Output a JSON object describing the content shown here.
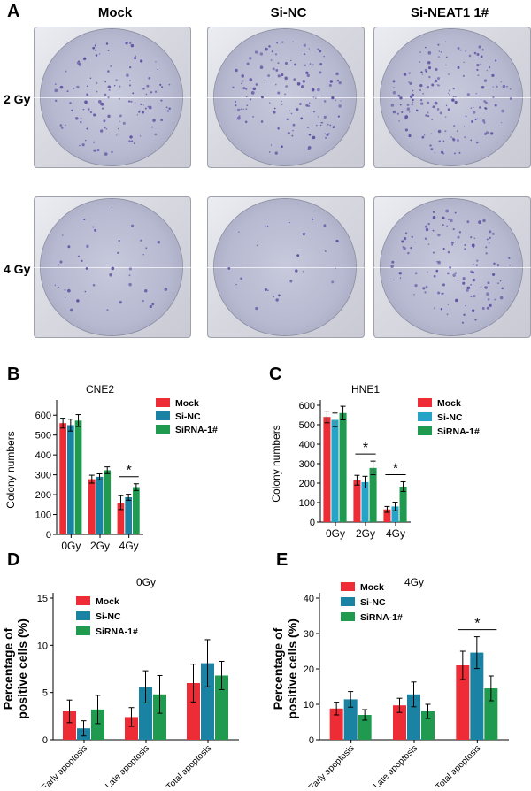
{
  "panel_a": {
    "letter": "A",
    "columns": [
      "Mock",
      "Si-NC",
      "Si-NEAT1 1#"
    ],
    "rows": [
      "2 Gy",
      "4 Gy"
    ],
    "colony_color": "#5a4c9e"
  },
  "chart_data": [
    {
      "id": "B",
      "letter": "B",
      "type": "bar",
      "title": "CNE2",
      "ylabel": "Colony numbers",
      "ylim": [
        0,
        650
      ],
      "yticks": [
        0,
        100,
        200,
        300,
        400,
        500,
        600
      ],
      "categories": [
        "0Gy",
        "2Gy",
        "4Gy"
      ],
      "series": [
        {
          "name": "Mock",
          "color": "#ee2c35",
          "values": [
            560,
            278,
            160
          ],
          "errors": [
            25,
            20,
            35
          ]
        },
        {
          "name": "Si-NC",
          "color": "#1a83a3",
          "values": [
            550,
            290,
            187
          ],
          "errors": [
            30,
            15,
            15
          ]
        },
        {
          "name": "SiRNA-1#",
          "color": "#1f9a4f",
          "values": [
            573,
            323,
            238
          ],
          "errors": [
            30,
            17,
            17
          ]
        }
      ],
      "significance": [
        {
          "category": "4Gy",
          "label": "*"
        }
      ],
      "legend": "top-right"
    },
    {
      "id": "C",
      "letter": "C",
      "type": "bar",
      "title": "HNE1",
      "ylabel": "Colony numbers",
      "ylim": [
        0,
        600
      ],
      "yticks": [
        0,
        100,
        200,
        300,
        400,
        500,
        600
      ],
      "categories": [
        "0Gy",
        "2Gy",
        "4Gy"
      ],
      "series": [
        {
          "name": "Mock",
          "color": "#ee2c35",
          "values": [
            540,
            215,
            65
          ],
          "errors": [
            30,
            25,
            15
          ]
        },
        {
          "name": "Si-NC",
          "color": "#25a4c8",
          "values": [
            525,
            205,
            80
          ],
          "errors": [
            35,
            30,
            22
          ]
        },
        {
          "name": "SiRNA-1#",
          "color": "#1f9a4f",
          "values": [
            560,
            278,
            182
          ],
          "errors": [
            35,
            35,
            25
          ]
        }
      ],
      "significance": [
        {
          "category": "2Gy",
          "label": "*"
        },
        {
          "category": "4Gy",
          "label": "*"
        }
      ],
      "legend": "top-right"
    },
    {
      "id": "D",
      "letter": "D",
      "type": "bar",
      "title": "0Gy",
      "ylabel": "Percentage of positive cells (%)",
      "ylim": [
        0,
        15
      ],
      "yticks": [
        0,
        5,
        10,
        15
      ],
      "categories": [
        "Early apoptosis",
        "Late apoptosis",
        "Total apoptosis"
      ],
      "series": [
        {
          "name": "Mock",
          "color": "#ee2c35",
          "values": [
            3.0,
            2.4,
            6.0
          ],
          "errors": [
            1.2,
            1.0,
            2.0
          ]
        },
        {
          "name": "Si-NC",
          "color": "#1a83a3",
          "values": [
            1.2,
            5.6,
            8.1
          ],
          "errors": [
            0.8,
            1.7,
            2.5
          ]
        },
        {
          "name": "SiRNA-1#",
          "color": "#1f9a4f",
          "values": [
            3.2,
            4.8,
            6.8
          ],
          "errors": [
            1.5,
            2.0,
            1.5
          ]
        }
      ],
      "significance": [],
      "legend": "top-left"
    },
    {
      "id": "E",
      "letter": "E",
      "type": "bar",
      "title": "4Gy",
      "ylabel": "Percentage of positive cells (%)",
      "ylim": [
        0,
        40
      ],
      "yticks": [
        0,
        10,
        20,
        30,
        40
      ],
      "categories": [
        "Early apoptosis",
        "Late apoptosis",
        "Total apoptosis"
      ],
      "series": [
        {
          "name": "Mock",
          "color": "#ee2c35",
          "values": [
            8.8,
            9.7,
            21.0
          ],
          "errors": [
            1.8,
            2.0,
            4.0
          ]
        },
        {
          "name": "Si-NC",
          "color": "#1a83a3",
          "values": [
            11.4,
            12.8,
            24.6
          ],
          "errors": [
            2.2,
            3.5,
            4.5
          ]
        },
        {
          "name": "SiRNA-1#",
          "color": "#1f9a4f",
          "values": [
            7.0,
            8.0,
            14.5
          ],
          "errors": [
            1.5,
            2.0,
            3.5
          ]
        }
      ],
      "significance": [
        {
          "category": "Total apoptosis",
          "label": "*"
        }
      ],
      "legend": "top-left"
    }
  ]
}
